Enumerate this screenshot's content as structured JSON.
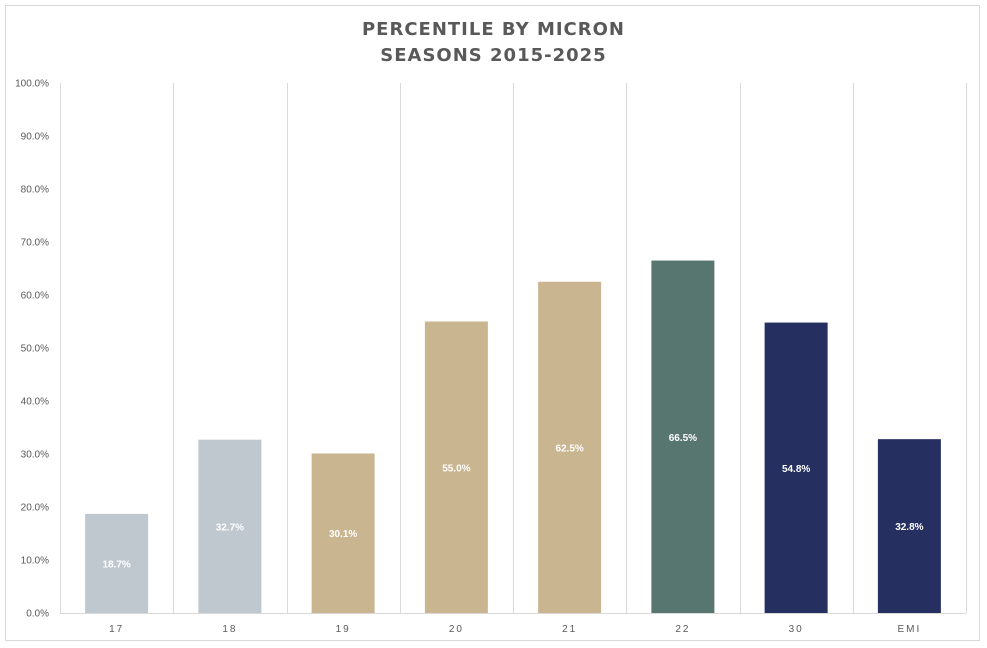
{
  "chart_data": {
    "type": "bar",
    "title": "PERCENTILE BY MICRON",
    "subtitle": "SEASONS 2015-2025",
    "xlabel": "",
    "ylabel": "",
    "ylim": [
      0,
      100
    ],
    "yticks": [
      "0.0%",
      "10.0%",
      "20.0%",
      "30.0%",
      "40.0%",
      "50.0%",
      "60.0%",
      "70.0%",
      "80.0%",
      "90.0%",
      "100.0%"
    ],
    "categories": [
      "17",
      "18",
      "19",
      "20",
      "21",
      "22",
      "30",
      "EMI"
    ],
    "values": [
      18.7,
      32.7,
      30.1,
      55.0,
      62.5,
      66.5,
      54.8,
      32.8
    ],
    "data_labels": [
      "18.7%",
      "32.7%",
      "30.1%",
      "55.0%",
      "62.5%",
      "66.5%",
      "54.8%",
      "32.8%"
    ],
    "colors": [
      "#bfc7cf",
      "#bfc7cf",
      "#cab591",
      "#cab591",
      "#cab591",
      "#587670",
      "#253060",
      "#253060"
    ],
    "grid": "vertical category separators",
    "legend": "none"
  }
}
